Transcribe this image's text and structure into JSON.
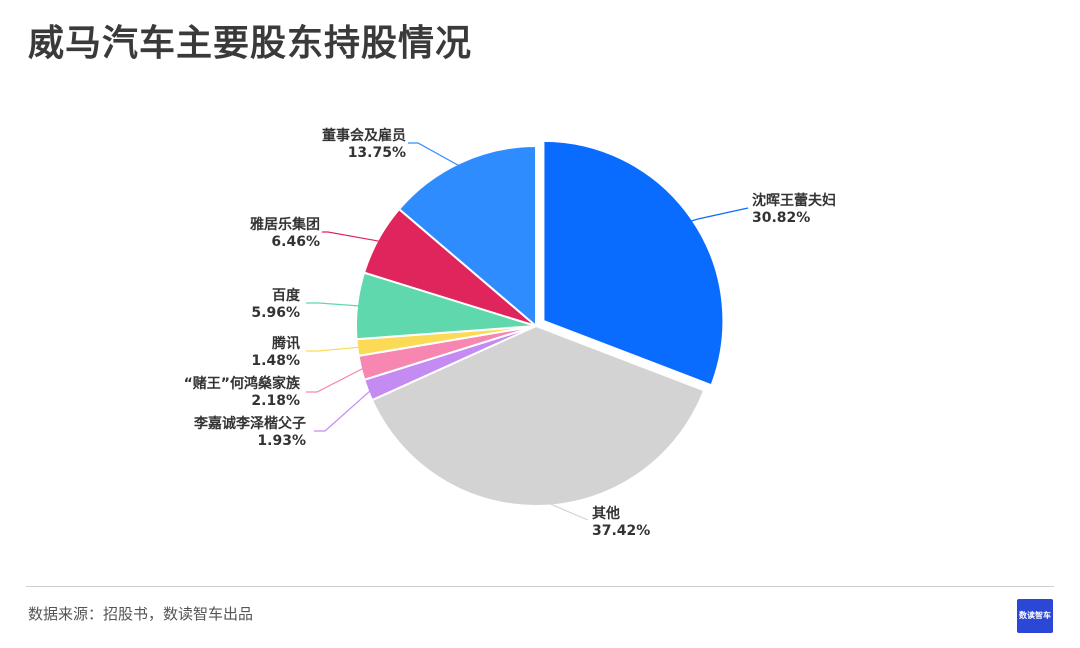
{
  "title": "威马汽车主要股东持股情况",
  "source": "数据来源：招股书，数读智车出品",
  "logo_text": "数读智车",
  "chart_data": {
    "type": "pie",
    "start": "12 o'clock, clockwise",
    "slices": [
      {
        "name": "沈晖王蕾夫妇",
        "value": 30.82,
        "label": "30.82%",
        "color": "#0a6cff",
        "exploded": true
      },
      {
        "name": "其他",
        "value": 37.42,
        "label": "37.42%",
        "color": "#d3d3d3",
        "exploded": false
      },
      {
        "name": "李嘉诚李泽楷父子",
        "value": 1.93,
        "label": "1.93%",
        "color": "#c48cf2",
        "exploded": false
      },
      {
        "name": "“赌王”何鸿燊家族",
        "value": 2.18,
        "label": "2.18%",
        "color": "#f786b1",
        "exploded": false
      },
      {
        "name": "腾讯",
        "value": 1.48,
        "label": "1.48%",
        "color": "#fbdb56",
        "exploded": false
      },
      {
        "name": "百度",
        "value": 5.96,
        "label": "5.96%",
        "color": "#5fd8ad",
        "exploded": false
      },
      {
        "name": "雅居乐集团",
        "value": 6.46,
        "label": "6.46%",
        "color": "#e0245c",
        "exploded": false
      },
      {
        "name": "董事会及雇员",
        "value": 13.75,
        "label": "13.75%",
        "color": "#2f8cff",
        "exploded": false
      }
    ]
  }
}
